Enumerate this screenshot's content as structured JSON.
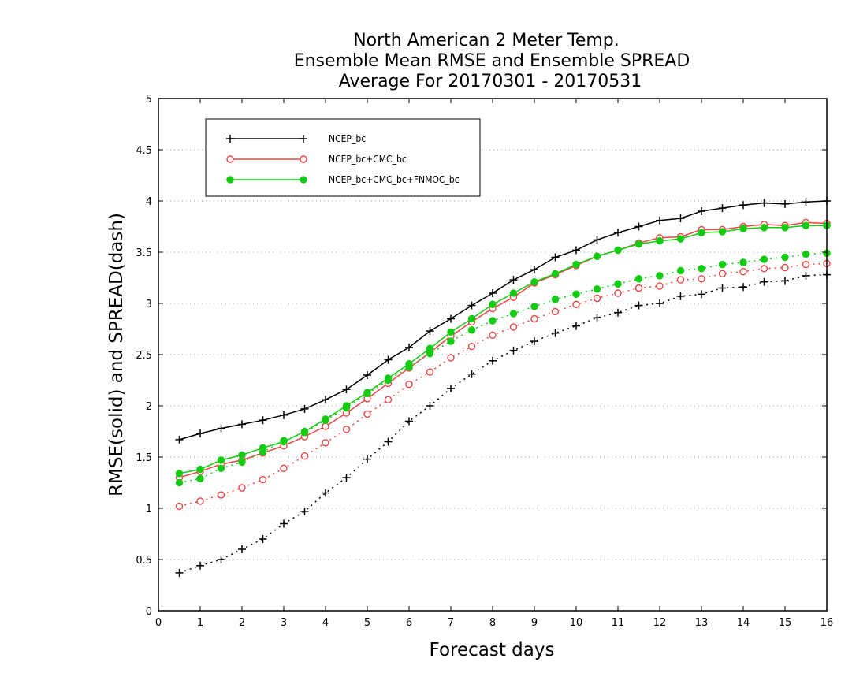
{
  "chart_data": {
    "type": "line",
    "title_lines": [
      "North American 2 Meter Temp.",
      "Ensemble Mean RMSE and Ensemble SPREAD",
      "Average For 20170301 - 20170531"
    ],
    "xlabel": "Forecast days",
    "ylabel": "RMSE(solid) and SPREAD(dash)",
    "xlim": [
      0,
      16
    ],
    "ylim": [
      0,
      5
    ],
    "x_ticks": [
      "0",
      "1",
      "2",
      "3",
      "4",
      "5",
      "6",
      "7",
      "8",
      "9",
      "10",
      "11",
      "12",
      "13",
      "14",
      "15",
      "16"
    ],
    "y_ticks": [
      "0",
      "0.5",
      "1",
      "1.5",
      "2",
      "2.5",
      "3",
      "3.5",
      "4",
      "4.5",
      "5"
    ],
    "grid": "horizontal dotted",
    "legend_position": "top-left",
    "x": [
      0.5,
      1,
      1.5,
      2,
      2.5,
      3,
      3.5,
      4,
      4.5,
      5,
      5.5,
      6,
      6.5,
      7,
      7.5,
      8,
      8.5,
      9,
      9.5,
      10,
      10.5,
      11,
      11.5,
      12,
      12.5,
      13,
      13.5,
      14,
      14.5,
      15,
      15.5,
      16
    ],
    "series": [
      {
        "name": "NCEP_bc",
        "color": "#000000",
        "marker": "plus",
        "rmse": [
          1.67,
          1.73,
          1.78,
          1.82,
          1.86,
          1.91,
          1.97,
          2.06,
          2.16,
          2.3,
          2.45,
          2.57,
          2.73,
          2.85,
          2.98,
          3.1,
          3.23,
          3.33,
          3.45,
          3.52,
          3.62,
          3.69,
          3.75,
          3.81,
          3.83,
          3.9,
          3.93,
          3.96,
          3.98,
          3.97,
          3.99,
          4.0
        ],
        "spread": [
          0.37,
          0.44,
          0.5,
          0.6,
          0.7,
          0.85,
          0.97,
          1.15,
          1.3,
          1.48,
          1.65,
          1.85,
          2.0,
          2.17,
          2.31,
          2.44,
          2.54,
          2.63,
          2.71,
          2.78,
          2.86,
          2.91,
          2.98,
          3.0,
          3.07,
          3.09,
          3.15,
          3.16,
          3.21,
          3.22,
          3.27,
          3.28
        ]
      },
      {
        "name": "NCEP_bc+CMC_bc",
        "color": "#ee4444",
        "marker": "open-circle",
        "rmse": [
          1.3,
          1.36,
          1.43,
          1.47,
          1.54,
          1.61,
          1.7,
          1.8,
          1.93,
          2.07,
          2.22,
          2.37,
          2.52,
          2.68,
          2.82,
          2.95,
          3.06,
          3.2,
          3.28,
          3.37,
          3.46,
          3.52,
          3.59,
          3.64,
          3.65,
          3.72,
          3.72,
          3.75,
          3.77,
          3.76,
          3.79,
          3.78
        ],
        "spread": [
          1.02,
          1.07,
          1.13,
          1.2,
          1.28,
          1.39,
          1.51,
          1.64,
          1.77,
          1.92,
          2.06,
          2.21,
          2.33,
          2.47,
          2.58,
          2.69,
          2.77,
          2.85,
          2.92,
          2.99,
          3.05,
          3.1,
          3.15,
          3.17,
          3.23,
          3.24,
          3.29,
          3.31,
          3.34,
          3.35,
          3.38,
          3.39
        ]
      },
      {
        "name": "NCEP_bc+CMC_bc+FNMOC_bc",
        "color": "#11cc11",
        "marker": "filled-circle",
        "rmse": [
          1.34,
          1.38,
          1.47,
          1.52,
          1.59,
          1.65,
          1.75,
          1.87,
          2.0,
          2.13,
          2.27,
          2.41,
          2.56,
          2.72,
          2.85,
          2.99,
          3.1,
          3.21,
          3.29,
          3.38,
          3.46,
          3.52,
          3.58,
          3.61,
          3.63,
          3.69,
          3.7,
          3.73,
          3.74,
          3.74,
          3.76,
          3.76
        ],
        "spread": [
          1.25,
          1.29,
          1.39,
          1.45,
          1.55,
          1.66,
          1.74,
          1.86,
          1.98,
          2.12,
          2.25,
          2.38,
          2.51,
          2.63,
          2.74,
          2.83,
          2.9,
          2.97,
          3.04,
          3.09,
          3.14,
          3.19,
          3.24,
          3.27,
          3.32,
          3.34,
          3.38,
          3.4,
          3.43,
          3.45,
          3.48,
          3.49
        ]
      }
    ]
  }
}
